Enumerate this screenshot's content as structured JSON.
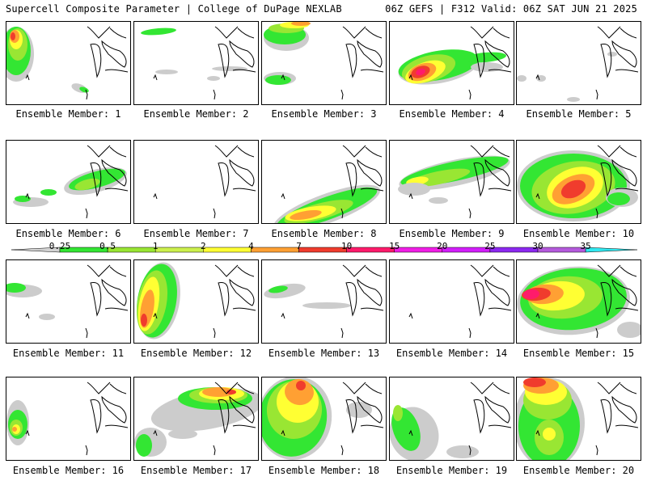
{
  "header": {
    "left": "Supercell Composite Parameter | College of DuPage NEXLAB",
    "right": "06Z GEFS | F312 Valid: 06Z SAT JUN 21 2025"
  },
  "colorbar": {
    "labels": [
      "0.25",
      "0.5",
      "1",
      "2",
      "4",
      "7",
      "10",
      "15",
      "20",
      "25",
      "30",
      "35"
    ],
    "colors": [
      "#d2d2d2",
      "#33e633",
      "#99e633",
      "#ccf04d",
      "#ffff33",
      "#ffa033",
      "#f03c2d",
      "#ff1b6b",
      "#f01ee6",
      "#d21efa",
      "#8c28f0",
      "#b45adc",
      "#30e8f0"
    ]
  },
  "panel_colors": {
    "gray": "#cccccc",
    "green": "#33e633",
    "lightgreen": "#99e633",
    "yellow": "#ffff33",
    "orange": "#ffa033",
    "red": "#f03c2d",
    "pink": "#ff1b6b"
  },
  "members": [
    {
      "label": "Ensemble Member: 1"
    },
    {
      "label": "Ensemble Member: 2"
    },
    {
      "label": "Ensemble Member: 3"
    },
    {
      "label": "Ensemble Member: 4"
    },
    {
      "label": "Ensemble Member: 5"
    },
    {
      "label": "Ensemble Member: 6"
    },
    {
      "label": "Ensemble Member: 7"
    },
    {
      "label": "Ensemble Member: 8"
    },
    {
      "label": "Ensemble Member: 9"
    },
    {
      "label": "Ensemble Member: 10"
    },
    {
      "label": "Ensemble Member: 11"
    },
    {
      "label": "Ensemble Member: 12"
    },
    {
      "label": "Ensemble Member: 13"
    },
    {
      "label": "Ensemble Member: 14"
    },
    {
      "label": "Ensemble Member: 15"
    },
    {
      "label": "Ensemble Member: 16"
    },
    {
      "label": "Ensemble Member: 17"
    },
    {
      "label": "Ensemble Member: 18"
    },
    {
      "label": "Ensemble Member: 19"
    },
    {
      "label": "Ensemble Member: 20"
    }
  ]
}
